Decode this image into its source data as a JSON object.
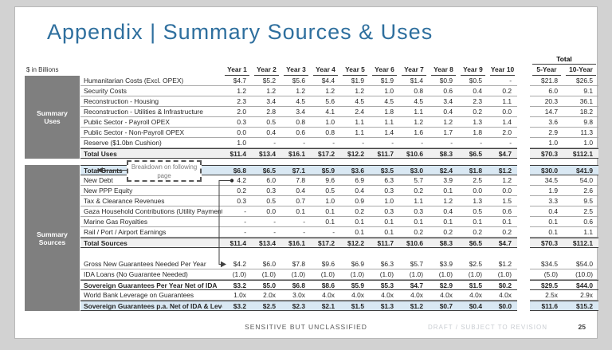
{
  "page": {
    "title": "Appendix | Summary Sources & Uses",
    "units_label": "$ in Billions",
    "footer": {
      "classification": "SENSITIVE BUT UNCLASSIFIED",
      "draft_note": "DRAFT / SUBJECT TO REVISION",
      "page_number": "25"
    },
    "colors": {
      "title_blue": "#2e6f9e",
      "section_box_gray": "#7f7f7f",
      "highlight_blue": "#d9e8f3",
      "total_row_gray": "#f0f0f0"
    }
  },
  "table": {
    "year_headers": [
      "Year 1",
      "Year 2",
      "Year 3",
      "Year 4",
      "Year 5",
      "Year 6",
      "Year 7",
      "Year 8",
      "Year 9",
      "Year 10"
    ],
    "totals_group_label": "Total",
    "totals_headers": [
      "5-Year",
      "10-Year"
    ],
    "uses_box_label": "Summary Uses",
    "sources_box_label": "Summary Sources",
    "annotation": "Breakdown on following page",
    "sections": [
      {
        "id": "uses",
        "rows": [
          {
            "label": "Humanitarian Costs (Excl. OPEX)",
            "cls": "",
            "values": [
              "$4.7",
              "$5.2",
              "$5.6",
              "$4.4",
              "$1.9",
              "$1.9",
              "$1.4",
              "$0.9",
              "$0.5",
              "-"
            ],
            "totals": [
              "$21.8",
              "$26.5"
            ]
          },
          {
            "label": "Security Costs",
            "cls": "",
            "values": [
              "1.2",
              "1.2",
              "1.2",
              "1.2",
              "1.2",
              "1.0",
              "0.8",
              "0.6",
              "0.4",
              "0.2"
            ],
            "totals": [
              "6.0",
              "9.1"
            ]
          },
          {
            "label": "Reconstruction - Housing",
            "cls": "",
            "values": [
              "2.3",
              "3.4",
              "4.5",
              "5.6",
              "4.5",
              "4.5",
              "4.5",
              "3.4",
              "2.3",
              "1.1"
            ],
            "totals": [
              "20.3",
              "36.1"
            ]
          },
          {
            "label": "Reconstruction - Utilities & Infrastructure",
            "cls": "",
            "values": [
              "2.0",
              "2.8",
              "3.4",
              "4.1",
              "2.4",
              "1.8",
              "1.1",
              "0.4",
              "0.2",
              "0.0"
            ],
            "totals": [
              "14.7",
              "18.2"
            ]
          },
          {
            "label": "Public Sector - Payroll OPEX",
            "cls": "",
            "values": [
              "0.3",
              "0.5",
              "0.8",
              "1.0",
              "1.1",
              "1.1",
              "1.2",
              "1.2",
              "1.3",
              "1.4"
            ],
            "totals": [
              "3.6",
              "9.8"
            ]
          },
          {
            "label": "Public Sector - Non-Payroll OPEX",
            "cls": "",
            "values": [
              "0.0",
              "0.4",
              "0.6",
              "0.8",
              "1.1",
              "1.4",
              "1.6",
              "1.7",
              "1.8",
              "2.0"
            ],
            "totals": [
              "2.9",
              "11.3"
            ]
          },
          {
            "label": "Reserve ($1.0bn Cushion)",
            "cls": "",
            "values": [
              "1.0",
              "-",
              "-",
              "-",
              "-",
              "-",
              "-",
              "-",
              "-",
              "-"
            ],
            "totals": [
              "1.0",
              "1.0"
            ]
          },
          {
            "label": "Total Uses",
            "cls": "total",
            "values": [
              "$11.4",
              "$13.4",
              "$16.1",
              "$17.2",
              "$12.2",
              "$11.7",
              "$10.6",
              "$8.3",
              "$6.5",
              "$4.7"
            ],
            "totals": [
              "$70.3",
              "$112.1"
            ]
          }
        ]
      },
      {
        "id": "sources",
        "rows": [
          {
            "label": "Total Grants",
            "cls": "blue",
            "values": [
              "$6.8",
              "$6.5",
              "$7.1",
              "$5.9",
              "$3.6",
              "$3.5",
              "$3.0",
              "$2.4",
              "$1.8",
              "$1.2"
            ],
            "totals": [
              "$30.0",
              "$41.9"
            ]
          },
          {
            "label": "New Debt",
            "cls": "",
            "values": [
              "4.2",
              "6.0",
              "7.8",
              "9.6",
              "6.9",
              "6.3",
              "5.7",
              "3.9",
              "2.5",
              "1.2"
            ],
            "totals": [
              "34.5",
              "54.0"
            ]
          },
          {
            "label": "New PPP Equity",
            "cls": "",
            "values": [
              "0.2",
              "0.3",
              "0.4",
              "0.5",
              "0.4",
              "0.3",
              "0.2",
              "0.1",
              "0.0",
              "0.0"
            ],
            "totals": [
              "1.9",
              "2.6"
            ]
          },
          {
            "label": "Tax & Clearance Revenues",
            "cls": "",
            "values": [
              "0.3",
              "0.5",
              "0.7",
              "1.0",
              "0.9",
              "1.0",
              "1.1",
              "1.2",
              "1.3",
              "1.5"
            ],
            "totals": [
              "3.3",
              "9.5"
            ]
          },
          {
            "label": "Gaza Household Contributions (Utility Payments)",
            "cls": "",
            "values": [
              "-",
              "0.0",
              "0.1",
              "0.1",
              "0.2",
              "0.3",
              "0.3",
              "0.4",
              "0.5",
              "0.6"
            ],
            "totals": [
              "0.4",
              "2.5"
            ]
          },
          {
            "label": "Marine Gas Royalties",
            "cls": "",
            "values": [
              "-",
              "-",
              "-",
              "0.1",
              "0.1",
              "0.1",
              "0.1",
              "0.1",
              "0.1",
              "0.1"
            ],
            "totals": [
              "0.1",
              "0.6"
            ]
          },
          {
            "label": "Rail / Port / Airport Earnings",
            "cls": "",
            "values": [
              "-",
              "-",
              "-",
              "-",
              "0.1",
              "0.1",
              "0.2",
              "0.2",
              "0.2",
              "0.2"
            ],
            "totals": [
              "0.1",
              "1.1"
            ]
          },
          {
            "label": "Total Sources",
            "cls": "total",
            "values": [
              "$11.4",
              "$13.4",
              "$16.1",
              "$17.2",
              "$12.2",
              "$11.7",
              "$10.6",
              "$8.3",
              "$6.5",
              "$4.7"
            ],
            "totals": [
              "$70.3",
              "$112.1"
            ]
          }
        ]
      },
      {
        "id": "guarantees",
        "rows": [
          {
            "label": "Gross New Guarantees Needed Per Year",
            "cls": "",
            "values": [
              "$4.2",
              "$6.0",
              "$7.8",
              "$9.6",
              "$6.9",
              "$6.3",
              "$5.7",
              "$3.9",
              "$2.5",
              "$1.2"
            ],
            "totals": [
              "$34.5",
              "$54.0"
            ]
          },
          {
            "label": "IDA Loans (No Guarantee Needed)",
            "cls": "",
            "values": [
              "(1.0)",
              "(1.0)",
              "(1.0)",
              "(1.0)",
              "(1.0)",
              "(1.0)",
              "(1.0)",
              "(1.0)",
              "(1.0)",
              "(1.0)"
            ],
            "totals": [
              "(5.0)",
              "(10.0)"
            ]
          },
          {
            "label": "Sovereign Guarantees Per Year Net of IDA",
            "cls": "subtotal",
            "values": [
              "$3.2",
              "$5.0",
              "$6.8",
              "$8.6",
              "$5.9",
              "$5.3",
              "$4.7",
              "$2.9",
              "$1.5",
              "$0.2"
            ],
            "totals": [
              "$29.5",
              "$44.0"
            ]
          },
          {
            "label": "World Bank Leverage on Guarantees",
            "cls": "",
            "values": [
              "1.0x",
              "2.0x",
              "3.0x",
              "4.0x",
              "4.0x",
              "4.0x",
              "4.0x",
              "4.0x",
              "4.0x",
              "4.0x"
            ],
            "totals": [
              "2.5x",
              "2.9x"
            ]
          },
          {
            "label": "Sovereign Guarantees p.a. Net of IDA & Levers",
            "cls": "blue",
            "values": [
              "$3.2",
              "$2.5",
              "$2.3",
              "$2.1",
              "$1.5",
              "$1.3",
              "$1.2",
              "$0.7",
              "$0.4",
              "$0.0"
            ],
            "totals": [
              "$11.6",
              "$15.2"
            ]
          }
        ]
      }
    ]
  }
}
